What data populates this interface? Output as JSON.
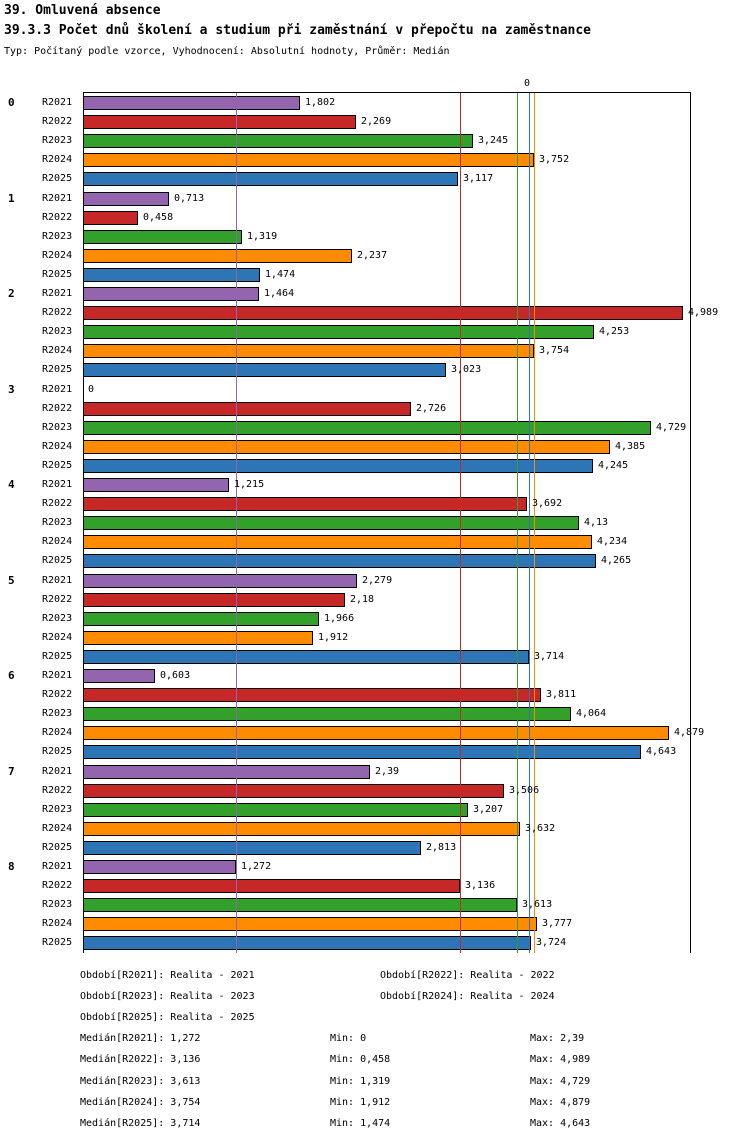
{
  "header": {
    "title": "39. Omluvená absence",
    "subtitle": "39.3.3 Počet dnů školení a studium při zaměstnání v přepočtu na zaměstnance",
    "meta": "Typ: Počítaný podle vzorce, Vyhodnocení: Absolutní hodnoty, Průměr: Medián"
  },
  "chart_data": {
    "type": "bar",
    "orientation": "horizontal",
    "xlim": [
      0,
      5.05
    ],
    "axis_zero_label": "0",
    "series": [
      "R2021",
      "R2022",
      "R2023",
      "R2024",
      "R2025"
    ],
    "series_colors": [
      "#9365AE",
      "#C62828",
      "#33A02C",
      "#FF8C00",
      "#2E75B6"
    ],
    "categories": [
      "0",
      "1",
      "2",
      "3",
      "4",
      "5",
      "6",
      "7",
      "8"
    ],
    "groups": [
      {
        "label": "0",
        "values": [
          1.802,
          2.269,
          3.245,
          3.752,
          3.117
        ],
        "labels": [
          "1,802",
          "2,269",
          "3,245",
          "3,752",
          "3,117"
        ]
      },
      {
        "label": "1",
        "values": [
          0.713,
          0.458,
          1.319,
          2.237,
          1.474
        ],
        "labels": [
          "0,713",
          "0,458",
          "1,319",
          "2,237",
          "1,474"
        ]
      },
      {
        "label": "2",
        "values": [
          1.464,
          4.989,
          4.253,
          3.754,
          3.023
        ],
        "labels": [
          "1,464",
          "4,989",
          "4,253",
          "3,754",
          "3,023"
        ]
      },
      {
        "label": "3",
        "values": [
          0,
          2.726,
          4.729,
          4.385,
          4.245
        ],
        "labels": [
          "0",
          "2,726",
          "4,729",
          "4,385",
          "4,245"
        ]
      },
      {
        "label": "4",
        "values": [
          1.215,
          3.692,
          4.13,
          4.234,
          4.265
        ],
        "labels": [
          "1,215",
          "3,692",
          "4,13",
          "4,234",
          "4,265"
        ]
      },
      {
        "label": "5",
        "values": [
          2.279,
          2.18,
          1.966,
          1.912,
          3.714
        ],
        "labels": [
          "2,279",
          "2,18",
          "1,966",
          "1,912",
          "3,714"
        ]
      },
      {
        "label": "6",
        "values": [
          0.603,
          3.811,
          4.064,
          4.879,
          4.643
        ],
        "labels": [
          "0,603",
          "3,811",
          "4,064",
          "4,879",
          "4,643"
        ]
      },
      {
        "label": "7",
        "values": [
          2.39,
          3.506,
          3.207,
          3.632,
          2.813
        ],
        "labels": [
          "2,39",
          "3,506",
          "3,207",
          "3,632",
          "2,813"
        ]
      },
      {
        "label": "8",
        "values": [
          1.272,
          3.136,
          3.613,
          3.777,
          3.724
        ],
        "labels": [
          "1,272",
          "3,136",
          "3,613",
          "3,777",
          "3,724"
        ]
      }
    ],
    "medians": {
      "R2021": 1.272,
      "R2022": 3.136,
      "R2023": 3.613,
      "R2024": 3.754,
      "R2025": 3.714
    },
    "legend": [
      {
        "label": "Období[R2021]: Realita - 2021"
      },
      {
        "label": "Období[R2022]: Realita - 2022"
      },
      {
        "label": "Období[R2023]: Realita - 2023"
      },
      {
        "label": "Období[R2024]: Realita - 2024"
      },
      {
        "label": "Období[R2025]: Realita - 2025"
      }
    ],
    "stats": [
      {
        "median": "Medián[R2021]: 1,272",
        "min": "Min: 0",
        "max": "Max: 2,39"
      },
      {
        "median": "Medián[R2022]: 3,136",
        "min": "Min: 0,458",
        "max": "Max: 4,989"
      },
      {
        "median": "Medián[R2023]: 3,613",
        "min": "Min: 1,319",
        "max": "Max: 4,729"
      },
      {
        "median": "Medián[R2024]: 3,754",
        "min": "Min: 1,912",
        "max": "Max: 4,879"
      },
      {
        "median": "Medián[R2025]: 3,714",
        "min": "Min: 1,474",
        "max": "Max: 4,643"
      }
    ]
  }
}
